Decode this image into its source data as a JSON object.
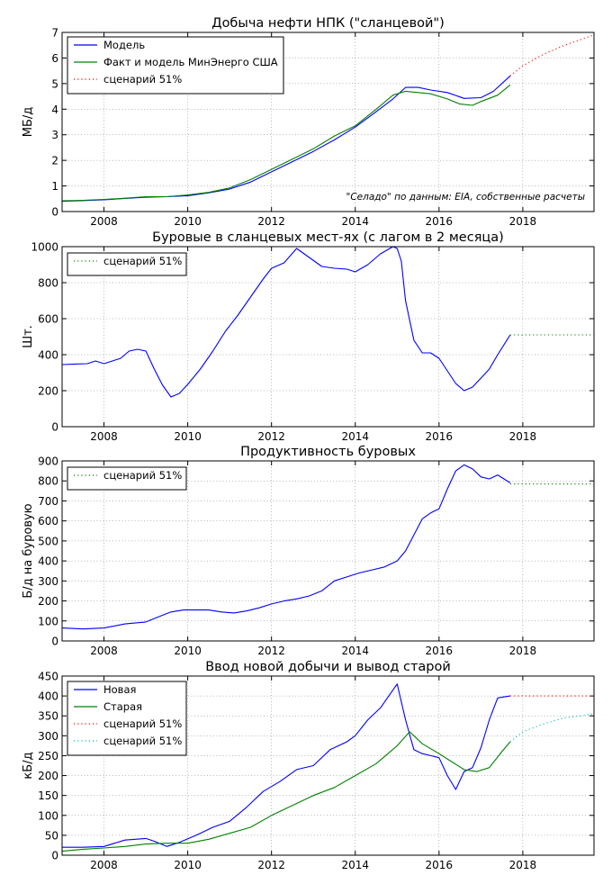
{
  "chart_data": [
    {
      "type": "line",
      "title": "Добыча нефти НПК (\"сланцевой\")",
      "ylabel": "МБ/д",
      "xlim": [
        2007.0,
        2019.7
      ],
      "ylim": [
        0,
        7
      ],
      "xticks": [
        2008,
        2010,
        2012,
        2014,
        2016,
        2018
      ],
      "yticks": [
        0,
        1,
        2,
        3,
        4,
        5,
        6,
        7
      ],
      "grid": true,
      "legend": "top-left",
      "annotation": "\"Селадо\" по данным: EIA, собственные расчеты",
      "series": [
        {
          "name": "Модель",
          "color": "#0000ff",
          "style": "solid",
          "x": [
            2007.0,
            2007.5,
            2008.0,
            2008.5,
            2009.0,
            2009.5,
            2010.0,
            2010.5,
            2011.0,
            2011.5,
            2012.0,
            2012.5,
            2013.0,
            2013.5,
            2014.0,
            2014.5,
            2014.9,
            2015.2,
            2015.5,
            2015.8,
            2016.2,
            2016.6,
            2017.0,
            2017.3,
            2017.7
          ],
          "y": [
            0.4,
            0.43,
            0.46,
            0.51,
            0.56,
            0.58,
            0.62,
            0.73,
            0.88,
            1.15,
            1.55,
            1.95,
            2.35,
            2.8,
            3.3,
            3.9,
            4.4,
            4.85,
            4.85,
            4.75,
            4.65,
            4.42,
            4.45,
            4.7,
            5.3
          ]
        },
        {
          "name": "Факт и модель МинЭнерго США",
          "color": "#008000",
          "style": "solid",
          "x": [
            2007.0,
            2007.5,
            2008.0,
            2008.5,
            2009.0,
            2009.5,
            2010.0,
            2010.5,
            2011.0,
            2011.5,
            2012.0,
            2012.5,
            2013.0,
            2013.5,
            2014.0,
            2014.5,
            2014.9,
            2015.2,
            2015.5,
            2015.8,
            2016.2,
            2016.5,
            2016.8,
            2017.0,
            2017.4,
            2017.7
          ],
          "y": [
            0.42,
            0.44,
            0.47,
            0.52,
            0.58,
            0.58,
            0.65,
            0.75,
            0.92,
            1.25,
            1.65,
            2.05,
            2.45,
            2.95,
            3.35,
            4.0,
            4.55,
            4.7,
            4.65,
            4.6,
            4.4,
            4.2,
            4.15,
            4.3,
            4.55,
            4.95
          ]
        },
        {
          "name": "сценарий 51%",
          "color": "#ff0000",
          "style": "dotted",
          "x": [
            2017.7,
            2018.0,
            2018.5,
            2019.0,
            2019.7
          ],
          "y": [
            5.3,
            5.7,
            6.15,
            6.5,
            6.9
          ]
        }
      ]
    },
    {
      "type": "line",
      "title": "Буровые в сланцевых мест-ях (с лагом в 2 месяца)",
      "ylabel": "Шт.",
      "xlim": [
        2007.0,
        2019.7
      ],
      "ylim": [
        0,
        1000
      ],
      "xticks": [
        2008,
        2010,
        2012,
        2014,
        2016,
        2018
      ],
      "yticks": [
        0,
        200,
        400,
        600,
        800,
        1000
      ],
      "grid": true,
      "legend": "top-left",
      "series": [
        {
          "name": "",
          "color": "#0000ff",
          "style": "solid",
          "x": [
            2007.0,
            2007.3,
            2007.6,
            2007.8,
            2008.0,
            2008.2,
            2008.4,
            2008.6,
            2008.8,
            2009.0,
            2009.2,
            2009.4,
            2009.6,
            2009.8,
            2010.0,
            2010.3,
            2010.6,
            2010.9,
            2011.2,
            2011.5,
            2011.8,
            2012.0,
            2012.3,
            2012.6,
            2012.9,
            2013.2,
            2013.5,
            2013.8,
            2014.0,
            2014.3,
            2014.6,
            2014.9,
            2015.0,
            2015.1,
            2015.2,
            2015.4,
            2015.6,
            2015.8,
            2016.0,
            2016.2,
            2016.4,
            2016.6,
            2016.8,
            2017.0,
            2017.2,
            2017.4,
            2017.7
          ],
          "y": [
            345,
            348,
            350,
            365,
            350,
            365,
            380,
            420,
            430,
            420,
            320,
            230,
            165,
            185,
            235,
            320,
            420,
            530,
            620,
            720,
            820,
            880,
            910,
            990,
            940,
            890,
            880,
            875,
            860,
            900,
            960,
            1000,
            990,
            920,
            700,
            480,
            410,
            410,
            380,
            310,
            240,
            200,
            220,
            270,
            320,
            400,
            510
          ]
        },
        {
          "name": "сценарий 51%",
          "color": "#008000",
          "style": "dotted",
          "x": [
            2017.7,
            2019.7
          ],
          "y": [
            510,
            510
          ]
        }
      ]
    },
    {
      "type": "line",
      "title": "Продуктивность буровых",
      "ylabel": "Б/д на буровую",
      "xlim": [
        2007.0,
        2019.7
      ],
      "ylim": [
        0,
        900
      ],
      "xticks": [
        2008,
        2010,
        2012,
        2014,
        2016,
        2018
      ],
      "yticks": [
        0,
        100,
        200,
        300,
        400,
        500,
        600,
        700,
        800,
        900
      ],
      "grid": true,
      "legend": "top-left",
      "series": [
        {
          "name": "",
          "color": "#0000ff",
          "style": "solid",
          "x": [
            2007.0,
            2007.5,
            2008.0,
            2008.5,
            2009.0,
            2009.3,
            2009.6,
            2009.9,
            2010.2,
            2010.5,
            2010.8,
            2011.1,
            2011.4,
            2011.7,
            2012.0,
            2012.3,
            2012.6,
            2012.9,
            2013.2,
            2013.5,
            2013.8,
            2014.1,
            2014.4,
            2014.7,
            2015.0,
            2015.2,
            2015.4,
            2015.6,
            2015.8,
            2016.0,
            2016.2,
            2016.4,
            2016.6,
            2016.8,
            2017.0,
            2017.2,
            2017.4,
            2017.7
          ],
          "y": [
            65,
            60,
            65,
            85,
            95,
            120,
            145,
            155,
            155,
            155,
            145,
            140,
            150,
            165,
            185,
            200,
            210,
            225,
            250,
            300,
            320,
            340,
            355,
            370,
            400,
            450,
            530,
            610,
            640,
            660,
            760,
            850,
            880,
            860,
            820,
            810,
            830,
            790
          ]
        },
        {
          "name": "сценарий 51%",
          "color": "#008000",
          "style": "dotted",
          "x": [
            2017.7,
            2019.7
          ],
          "y": [
            785,
            785
          ]
        }
      ]
    },
    {
      "type": "line",
      "title": "Ввод новой добычи и вывод старой",
      "ylabel": "кБ/д",
      "xlim": [
        2007.0,
        2019.7
      ],
      "ylim": [
        0,
        450
      ],
      "xticks": [
        2008,
        2010,
        2012,
        2014,
        2016,
        2018
      ],
      "yticks": [
        0,
        50,
        100,
        150,
        200,
        250,
        300,
        350,
        400,
        450
      ],
      "grid": true,
      "legend": "top-left",
      "series": [
        {
          "name": "Новая",
          "color": "#0000ff",
          "style": "solid",
          "x": [
            2007.0,
            2007.5,
            2008.0,
            2008.5,
            2009.0,
            2009.2,
            2009.5,
            2009.8,
            2010.2,
            2010.6,
            2011.0,
            2011.4,
            2011.8,
            2012.2,
            2012.6,
            2013.0,
            2013.4,
            2013.8,
            2014.0,
            2014.3,
            2014.6,
            2014.8,
            2015.0,
            2015.2,
            2015.4,
            2015.6,
            2015.8,
            2016.0,
            2016.2,
            2016.4,
            2016.6,
            2016.8,
            2017.0,
            2017.2,
            2017.4,
            2017.7
          ],
          "y": [
            20,
            20,
            22,
            38,
            42,
            35,
            22,
            32,
            50,
            70,
            85,
            120,
            160,
            185,
            215,
            225,
            265,
            285,
            300,
            340,
            370,
            400,
            430,
            340,
            265,
            255,
            250,
            245,
            200,
            165,
            210,
            220,
            270,
            340,
            395,
            400
          ]
        },
        {
          "name": "Старая",
          "color": "#008000",
          "style": "solid",
          "x": [
            2007.0,
            2007.5,
            2008.0,
            2008.5,
            2009.0,
            2009.5,
            2010.0,
            2010.5,
            2011.0,
            2011.5,
            2012.0,
            2012.5,
            2013.0,
            2013.5,
            2014.0,
            2014.5,
            2015.0,
            2015.3,
            2015.6,
            2016.0,
            2016.3,
            2016.6,
            2016.9,
            2017.2,
            2017.5,
            2017.7
          ],
          "y": [
            10,
            15,
            18,
            22,
            28,
            30,
            30,
            40,
            55,
            70,
            100,
            125,
            150,
            170,
            200,
            230,
            275,
            310,
            280,
            255,
            235,
            215,
            210,
            220,
            260,
            285
          ]
        },
        {
          "name": "сценарий 51%",
          "color": "#ff0000",
          "style": "dotted",
          "x": [
            2017.7,
            2019.7
          ],
          "y": [
            400,
            400
          ]
        },
        {
          "name": "сценарий 51%",
          "color": "#00bfbf",
          "style": "dotted",
          "x": [
            2017.7,
            2018.0,
            2018.5,
            2019.0,
            2019.7
          ],
          "y": [
            285,
            310,
            330,
            345,
            355
          ]
        }
      ]
    }
  ]
}
